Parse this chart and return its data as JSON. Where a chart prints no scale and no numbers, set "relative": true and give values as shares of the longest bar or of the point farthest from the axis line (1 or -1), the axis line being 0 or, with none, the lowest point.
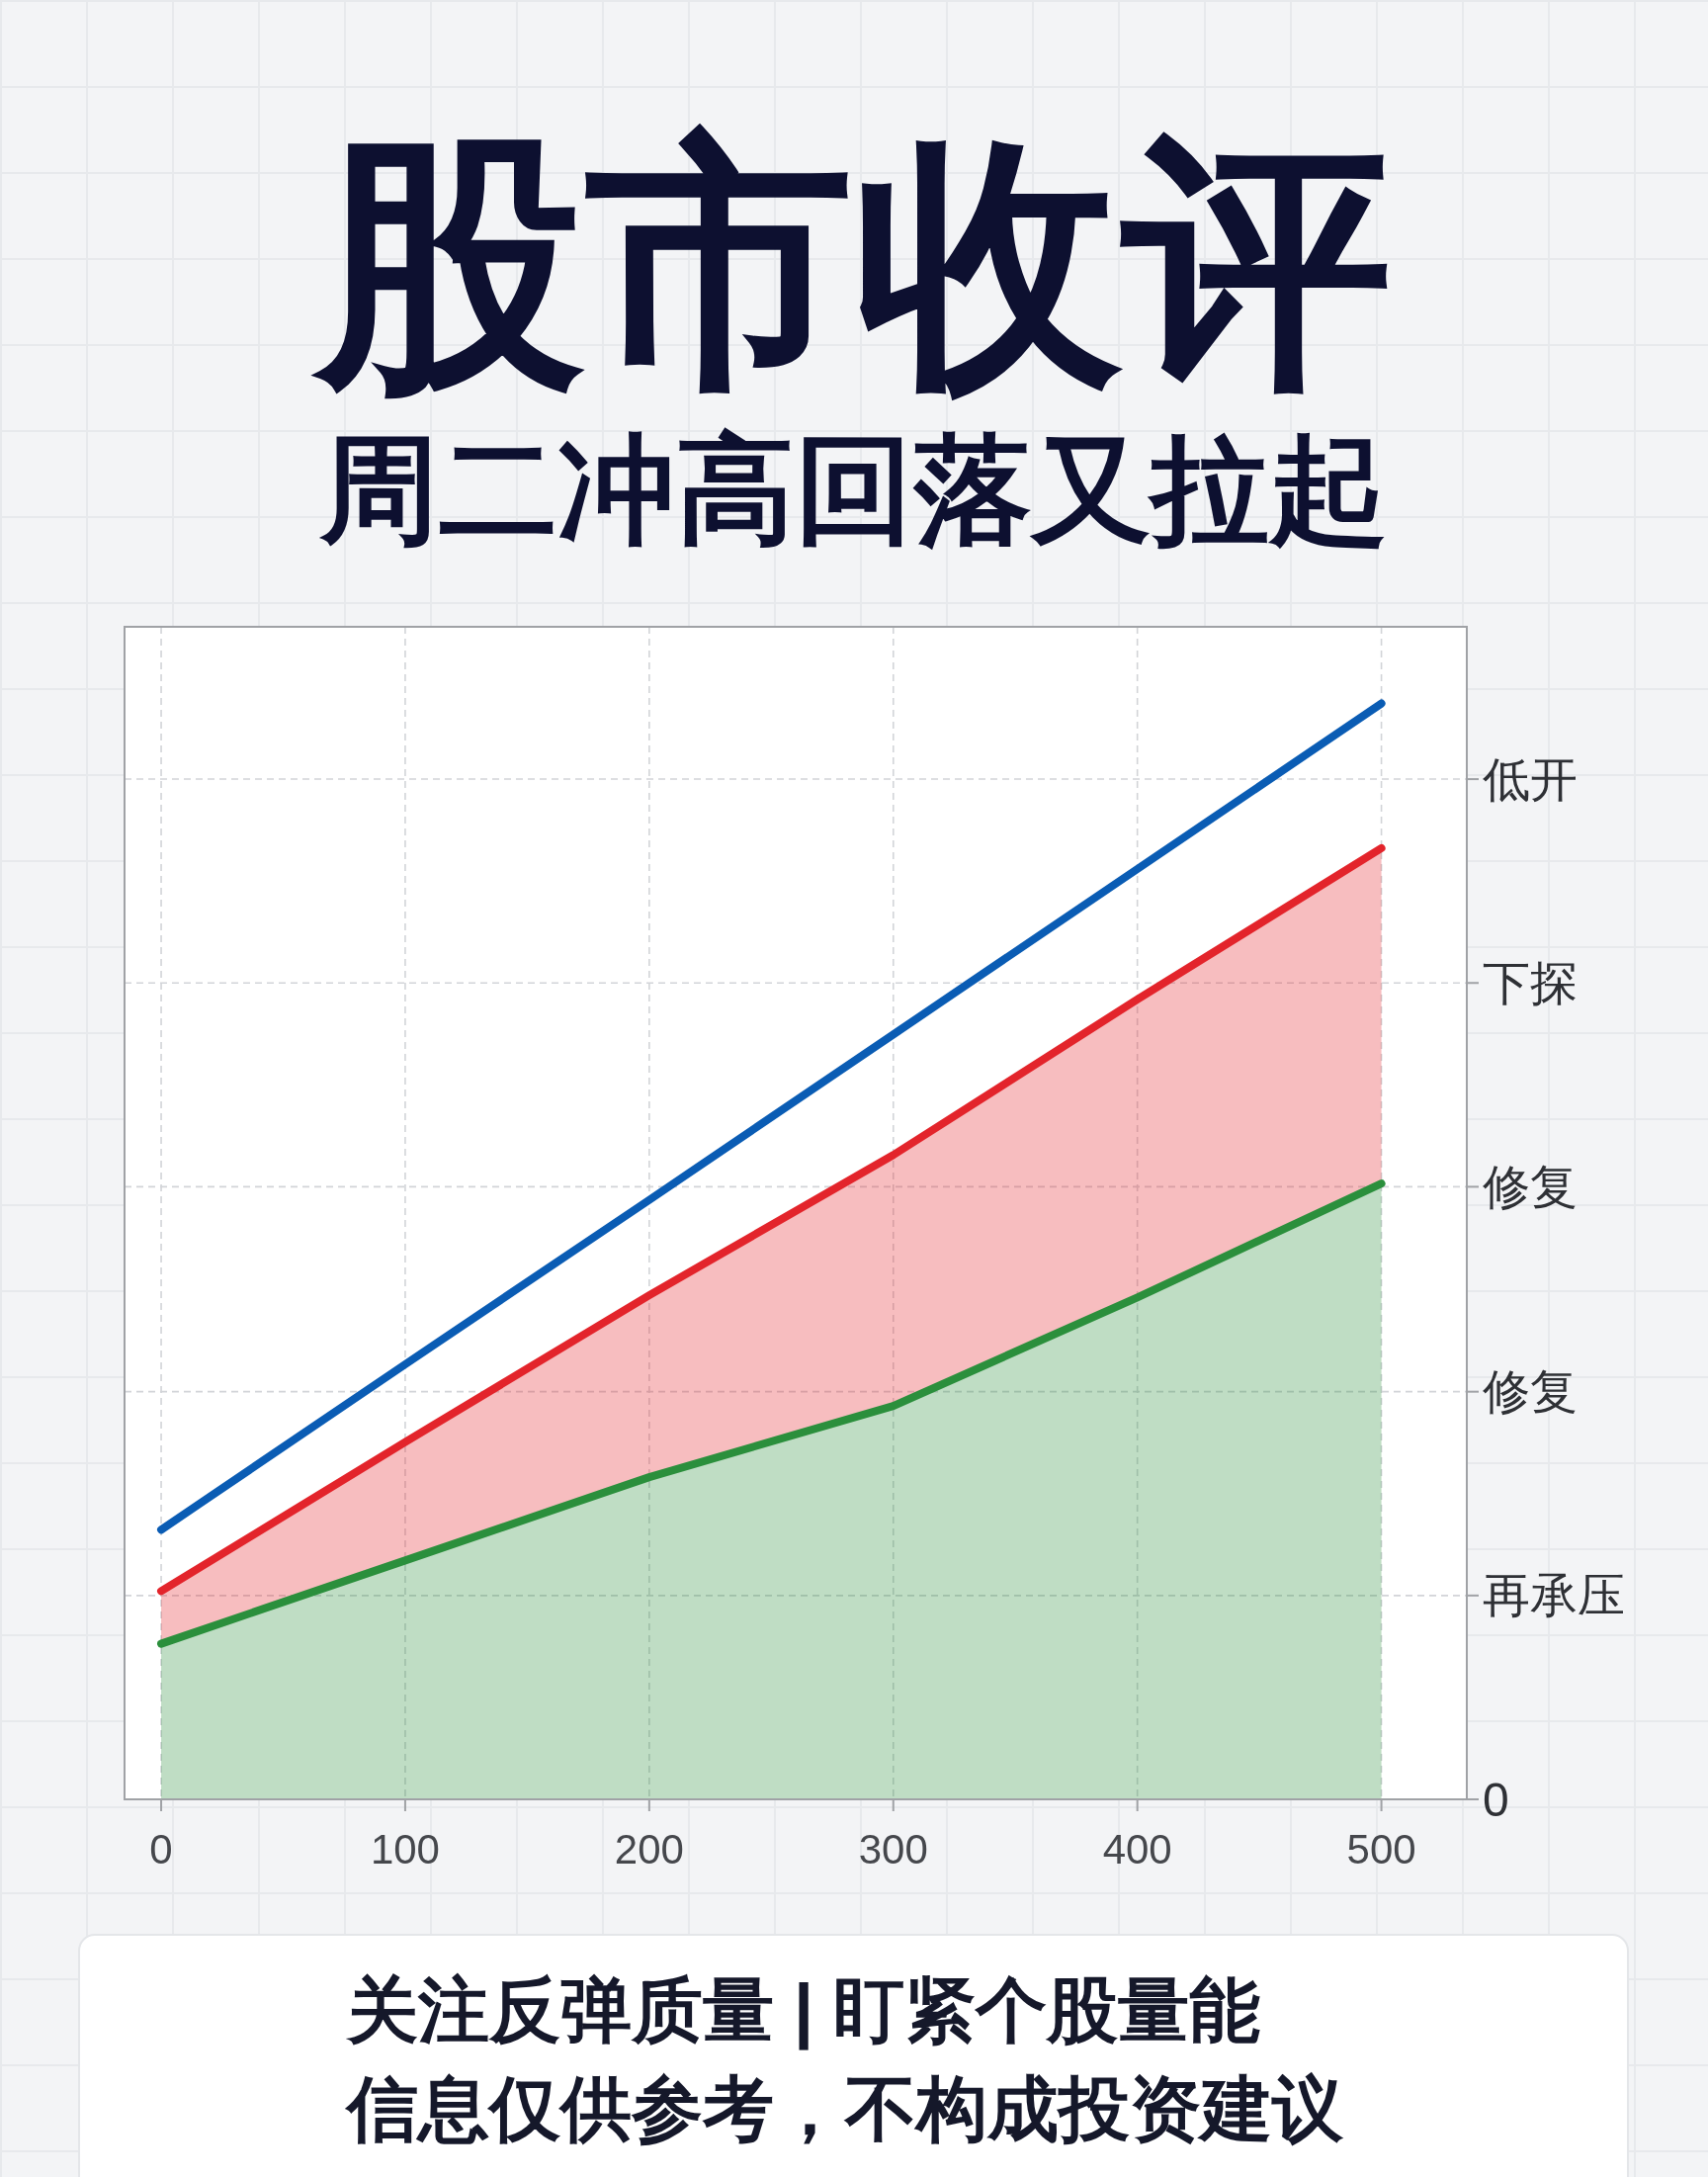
{
  "chart_data": {
    "type": "line",
    "title": "股市收评",
    "subtitle": "周二冲高回落又拉起",
    "relative": true,
    "x": [
      0,
      100,
      200,
      300,
      400,
      500
    ],
    "series": [
      {
        "color": "#0a5cb4",
        "values": [
          0.246,
          0.397,
          0.547,
          0.698,
          0.849,
          1
        ]
      },
      {
        "type": "area",
        "color": "#e3242b",
        "values": [
          0.19,
          0.326,
          0.46,
          0.588,
          0.73,
          0.868
        ]
      },
      {
        "type": "area",
        "color": "#2b8f3c",
        "values": [
          0.142,
          0.218,
          0.294,
          0.359,
          0.458,
          0.562
        ]
      }
    ],
    "xlim": [
      -15,
      535
    ],
    "xticks": [
      0,
      100,
      200,
      300,
      400,
      500
    ],
    "ref_lines": [
      {
        "axis": "y",
        "value": 0,
        "label": "0",
        "color": "#a0a2a6"
      },
      {
        "axis": "y",
        "value": 0.186,
        "label": "再承压",
        "color": "#d2d4d8",
        "line_style": "dashed"
      },
      {
        "axis": "y",
        "value": 0.372,
        "label": "修复",
        "color": "#d2d4d8",
        "line_style": "dashed"
      },
      {
        "axis": "y",
        "value": 0.559,
        "label": "修复",
        "color": "#d2d4d8",
        "line_style": "dashed"
      },
      {
        "axis": "y",
        "value": 0.745,
        "label": "下探",
        "color": "#d2d4d8",
        "line_style": "dashed"
      },
      {
        "axis": "y",
        "value": 0.931,
        "label": "低开",
        "color": "#d2d4d8",
        "line_style": "dashed"
      }
    ],
    "grid": "x",
    "annotations": [
      "关注反弹质量 | 盯紧个股量能",
      "信息仅供参考，不构成投资建议"
    ]
  }
}
